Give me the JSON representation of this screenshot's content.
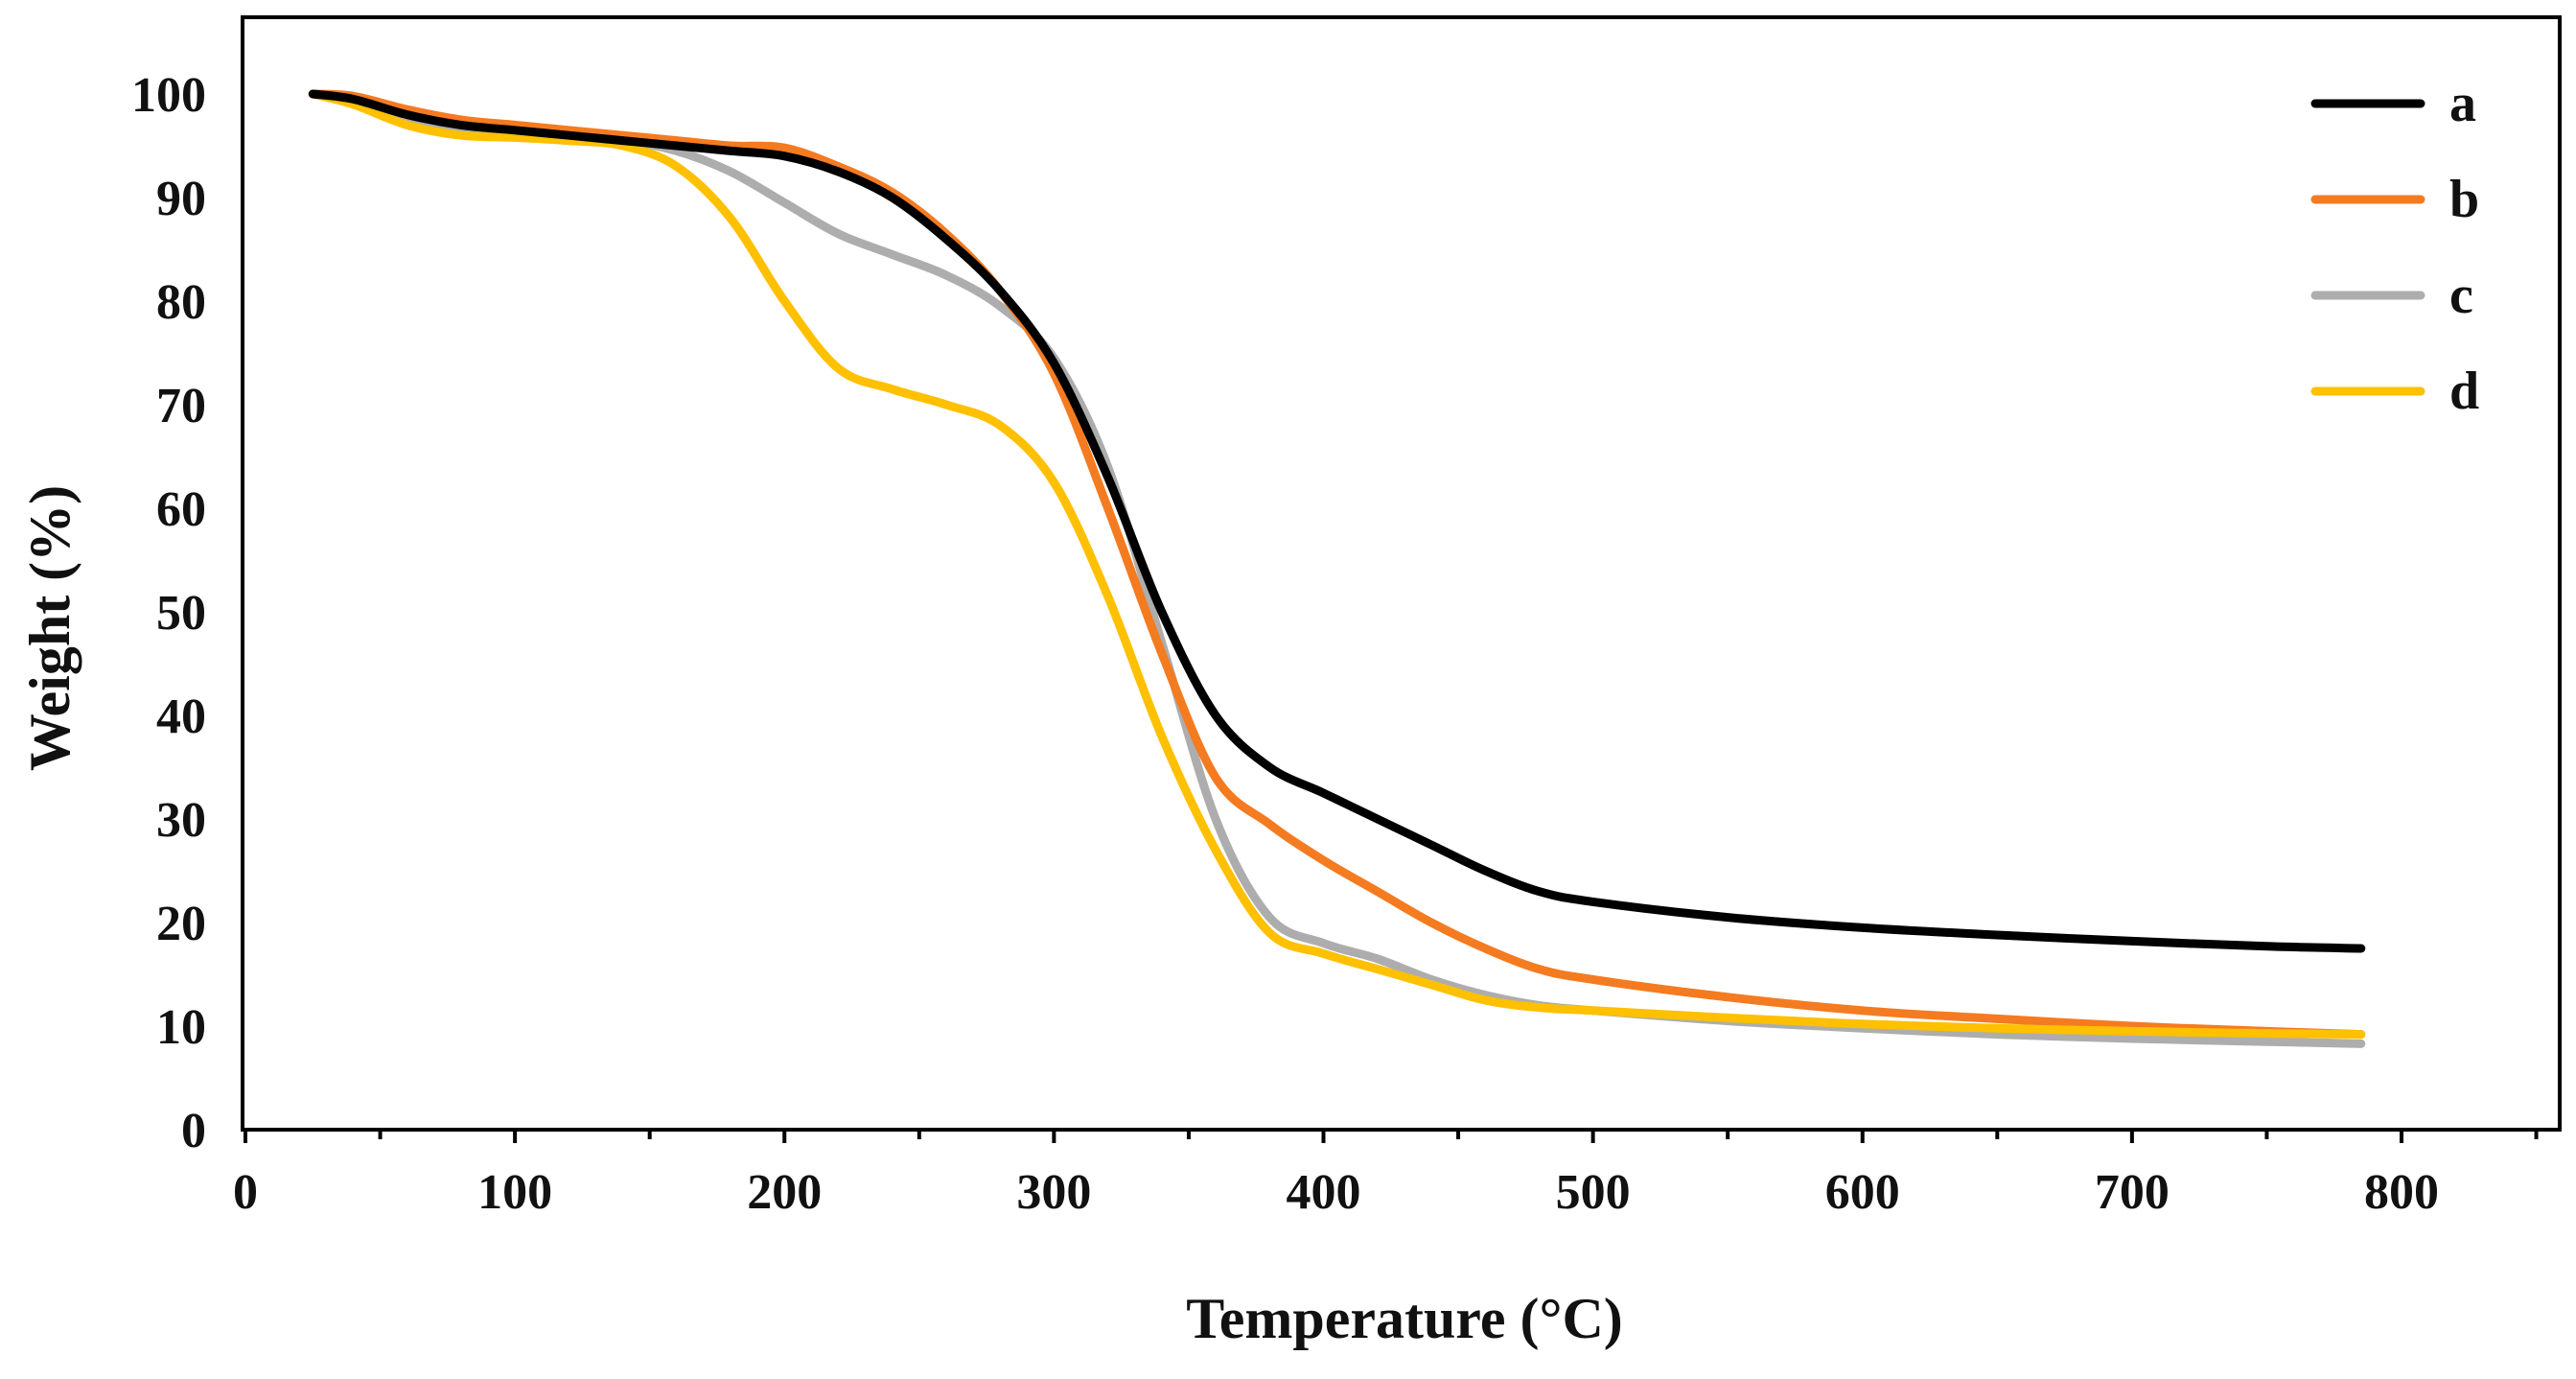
{
  "chart_data": {
    "type": "line",
    "title": "",
    "xlabel": "Temperature (°C)",
    "ylabel": "Weight (%)",
    "xlim": [
      0,
      850
    ],
    "ylim": [
      0,
      107
    ],
    "x_ticks": [
      0,
      100,
      200,
      300,
      400,
      500,
      600,
      700,
      800
    ],
    "x_tick_labels": [
      "0",
      "100",
      "200",
      "300",
      "400",
      "500",
      "600",
      "700",
      "800"
    ],
    "y_ticks": [
      0,
      10,
      20,
      30,
      40,
      50,
      60,
      70,
      80,
      90,
      100
    ],
    "y_tick_labels": [
      "0",
      "10",
      "20",
      "30",
      "40",
      "50",
      "60",
      "70",
      "80",
      "90",
      "100"
    ],
    "grid": false,
    "legend_position": "top-right",
    "series": [
      {
        "name": "a",
        "color": "#000000",
        "x": [
          25,
          40,
          60,
          80,
          100,
          120,
          140,
          160,
          180,
          200,
          220,
          240,
          260,
          280,
          300,
          320,
          340,
          360,
          380,
          400,
          420,
          440,
          460,
          480,
          500,
          550,
          600,
          650,
          700,
          750,
          785
        ],
        "y": [
          100,
          99.5,
          98,
          97,
          96.5,
          96,
          95.5,
          95,
          94.5,
          94,
          92.5,
          90,
          86,
          81,
          74,
          63,
          50,
          40,
          35,
          32.5,
          30,
          27.5,
          25,
          23,
          22,
          20.5,
          19.5,
          18.8,
          18.2,
          17.7,
          17.5
        ]
      },
      {
        "name": "b",
        "color": "#F47B20",
        "x": [
          25,
          40,
          60,
          80,
          100,
          120,
          140,
          160,
          180,
          200,
          220,
          240,
          260,
          280,
          300,
          320,
          340,
          360,
          380,
          400,
          420,
          440,
          460,
          480,
          500,
          550,
          600,
          650,
          700,
          750,
          785
        ],
        "y": [
          100,
          99.8,
          98.5,
          97.5,
          97,
          96.5,
          96,
          95.5,
          95,
          94.8,
          93,
          90.5,
          86.5,
          81,
          73,
          60,
          46,
          34,
          29.5,
          26,
          23,
          20,
          17.5,
          15.5,
          14.5,
          12.8,
          11.5,
          10.7,
          10,
          9.5,
          9.2
        ]
      },
      {
        "name": "c",
        "color": "#ADADAD",
        "x": [
          25,
          40,
          60,
          80,
          100,
          120,
          140,
          160,
          180,
          200,
          220,
          240,
          260,
          280,
          300,
          320,
          340,
          360,
          380,
          400,
          420,
          440,
          460,
          480,
          500,
          550,
          600,
          650,
          700,
          750,
          785
        ],
        "y": [
          100,
          99.5,
          97.5,
          96.5,
          96,
          95.5,
          95.5,
          94.5,
          92.5,
          89.5,
          86.5,
          84.5,
          82.5,
          79.5,
          74.5,
          64,
          47,
          30,
          20.5,
          18,
          16.5,
          14.5,
          13,
          12,
          11.5,
          10.5,
          9.8,
          9.2,
          8.8,
          8.5,
          8.3
        ]
      },
      {
        "name": "d",
        "color": "#FFC000",
        "x": [
          25,
          40,
          60,
          80,
          100,
          120,
          140,
          160,
          180,
          200,
          220,
          240,
          260,
          280,
          300,
          320,
          340,
          360,
          380,
          400,
          420,
          440,
          460,
          480,
          500,
          550,
          600,
          650,
          700,
          750,
          785
        ],
        "y": [
          100,
          99,
          97,
          96,
          95.8,
          95.5,
          95,
          93,
          88,
          80,
          73.5,
          71.5,
          70,
          68,
          62.5,
          51.5,
          38,
          27,
          19,
          17,
          15.5,
          14,
          12.5,
          11.8,
          11.5,
          10.8,
          10.2,
          9.8,
          9.5,
          9.3,
          9.2
        ]
      }
    ]
  }
}
